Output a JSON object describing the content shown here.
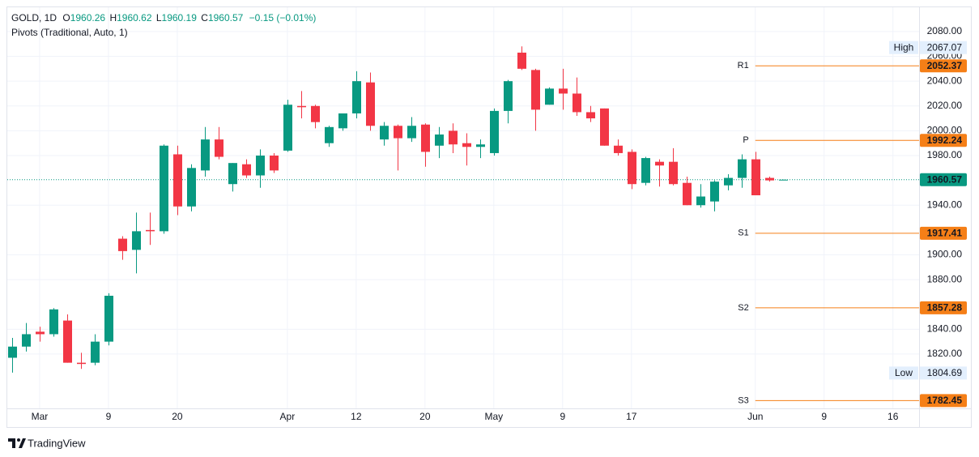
{
  "header": {
    "symbol": "GOLD, 1D",
    "ohlc": [
      {
        "label": "O",
        "value": "1960.26"
      },
      {
        "label": "H",
        "value": "1960.62"
      },
      {
        "label": "L",
        "value": "1960.19"
      },
      {
        "label": "C",
        "value": "1960.57"
      }
    ],
    "change": "−0.15 (−0.01%)",
    "indicator": "Pivots (Traditional, Auto, 1)"
  },
  "chart_data": {
    "type": "candlestick",
    "open": [
      1817,
      1826,
      1838,
      1836,
      1847,
      1813,
      1813,
      1830,
      1913,
      1904,
      1920,
      1919,
      1981,
      1939,
      1968,
      1993,
      1957,
      1973,
      1964,
      1980,
      1984,
      2020,
      2020,
      1990,
      2002,
      2014,
      2039,
      1993,
      2004,
      1994,
      2005,
      1988,
      2000,
      1990,
      1987,
      1982,
      2016,
      2063,
      2049,
      2021,
      2034,
      2030,
      2015,
      2018,
      1988,
      1983,
      1958,
      1975,
      1975,
      1958,
      1940,
      1943,
      1956,
      1962,
      1977,
      1962,
      1960.26
    ],
    "high": [
      1833,
      1845,
      1842,
      1857,
      1852,
      1821,
      1836,
      1869,
      1915,
      1934,
      1934,
      1989,
      1988,
      1973,
      2003,
      2003,
      1974,
      1977,
      1985,
      1982,
      2025,
      2032,
      2021,
      2004,
      2014,
      2048,
      2047,
      2007,
      2005,
      2011,
      2006,
      2003,
      2006,
      1998,
      1993,
      2018,
      2041,
      2068,
      2050,
      2035,
      2050,
      2043,
      2020,
      2018,
      1993,
      1985,
      1979,
      1977,
      1986,
      1963,
      1957,
      1960,
      1965,
      1981,
      1983,
      1963,
      1960.62
    ],
    "low": [
      1805,
      1822,
      1830,
      1834,
      1813,
      1808,
      1811,
      1827,
      1896,
      1885,
      1908,
      1917,
      1932,
      1935,
      1963,
      1977,
      1951,
      1962,
      1954,
      1966,
      1983,
      2010,
      2002,
      1987,
      2000,
      2010,
      2000,
      1988,
      1968,
      1991,
      1971,
      1978,
      1982,
      1972,
      1978,
      1980,
      2006,
      2049,
      2000,
      2021,
      2017,
      2012,
      2007,
      1988,
      1980,
      1953,
      1956,
      1955,
      1956,
      1940,
      1938,
      1935,
      1952,
      1954,
      1948,
      1959,
      1960.19
    ],
    "close": [
      1826,
      1836,
      1836,
      1856,
      1813,
      1812,
      1830,
      1867,
      1903,
      1919,
      1919,
      1988,
      1939,
      1970,
      1993,
      1979,
      1974,
      1964,
      1980,
      1968,
      2021,
      2019,
      2007,
      2003,
      2014,
      2040,
      2004,
      2004,
      1994,
      2004,
      1983,
      1997,
      1989,
      1987,
      1989,
      2016,
      2040,
      2050,
      2017,
      2034,
      2030,
      2015,
      2010,
      1988,
      1982,
      1957,
      1978,
      1972,
      1957,
      1940,
      1947,
      1959,
      1962,
      1977,
      1948,
      1960,
      1960.57
    ],
    "colors": {
      "up": "#089981",
      "down": "#f23645",
      "pivot": "#f57f17",
      "grid": "#f0f3fa"
    },
    "xlim": [
      -0.41,
      65.9
    ],
    "xticks": [
      {
        "value": 2,
        "label": "Mar"
      },
      {
        "value": 7,
        "label": "9"
      },
      {
        "value": 12,
        "label": "20"
      },
      {
        "value": 20,
        "label": "Apr"
      },
      {
        "value": 25,
        "label": "12"
      },
      {
        "value": 30,
        "label": "20"
      },
      {
        "value": 35,
        "label": "May"
      },
      {
        "value": 40,
        "label": "9"
      },
      {
        "value": 45,
        "label": "17"
      },
      {
        "value": 54,
        "label": "Jun"
      },
      {
        "value": 59,
        "label": "9"
      },
      {
        "value": 64,
        "label": "16"
      }
    ],
    "ylim": [
      1778.8,
      2098.9
    ],
    "yticks": [
      {
        "value": 1820,
        "label": "1820.00"
      },
      {
        "value": 1840,
        "label": "1840.00"
      },
      {
        "value": 1880,
        "label": "1880.00"
      },
      {
        "value": 1900,
        "label": "1900.00"
      },
      {
        "value": 1940,
        "label": "1940.00"
      },
      {
        "value": 1980,
        "label": "1980.00"
      },
      {
        "value": 2000,
        "label": "2000.00"
      },
      {
        "value": 2020,
        "label": "2020.00"
      },
      {
        "value": 2040,
        "label": "2040.00"
      },
      {
        "value": 2060,
        "label": "2060.00"
      },
      {
        "value": 2080,
        "label": "2080.00"
      }
    ],
    "grid": true,
    "pivots": [
      {
        "name": "R1",
        "value": 2052.37
      },
      {
        "name": "P",
        "value": 1992.24
      },
      {
        "name": "S1",
        "value": 1917.41
      },
      {
        "name": "S2",
        "value": 1857.28
      },
      {
        "name": "S3",
        "value": 1782.45
      }
    ],
    "pivot_start": 54,
    "high_marker": {
      "label": "High",
      "value": 2067.07
    },
    "low_marker": {
      "label": "Low",
      "value": 1804.69
    },
    "last_price": 1960.57
  },
  "footer": {
    "brand": "TradingView"
  }
}
